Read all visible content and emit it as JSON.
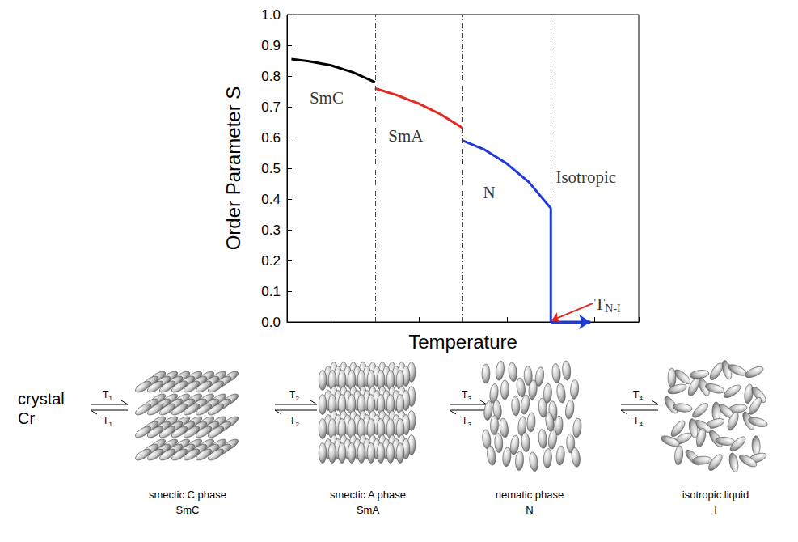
{
  "chart_data": {
    "type": "line",
    "x_label": "Temperature",
    "y_label": "Order Parameter S",
    "xlim": [
      0,
      8
    ],
    "xticks": [
      0,
      1,
      2,
      3,
      4,
      5,
      6,
      7,
      8
    ],
    "ylim": [
      0,
      1
    ],
    "yticks": [
      {
        "value": 0,
        "label": "0.0"
      },
      0.1,
      0.2,
      0.3,
      0.4,
      0.5,
      0.6,
      0.7,
      0.8,
      0.9,
      {
        "value": 1,
        "label": "1.0"
      }
    ],
    "tick_labels": "y",
    "grid": false,
    "series": [
      {
        "color": "#000000",
        "x": [
          0.1,
          0.5,
          1,
          1.5,
          2
        ],
        "values": [
          0.855,
          0.848,
          0.835,
          0.812,
          0.78
        ]
      },
      {
        "color": "#e8251f",
        "x": [
          2,
          2.5,
          3,
          3.5,
          4
        ],
        "values": [
          0.76,
          0.738,
          0.71,
          0.675,
          0.63
        ]
      },
      {
        "color": "#1f3ad6",
        "x": [
          4,
          4.5,
          5,
          5.5,
          6,
          6,
          6.9
        ],
        "values": [
          0.59,
          0.56,
          0.515,
          0.455,
          0.37,
          0,
          0
        ],
        "marker": "arrow"
      }
    ],
    "phase_boundaries": [
      2,
      4,
      6
    ],
    "annotations": [
      {
        "text": "SmC",
        "x": 0.9,
        "y": 0.73
      },
      {
        "text": "SmA",
        "x": 2.7,
        "y": 0.605
      },
      {
        "text": "N",
        "x": 4.6,
        "y": 0.42
      },
      {
        "text": "Isotropic",
        "x": 6.8,
        "y": 0.47
      },
      {
        "text": "T",
        "subscript": "N-I",
        "x": 6.95,
        "y": 0.06,
        "arrow_to": [
          6.02,
          0.005
        ],
        "color": "#e8251f"
      }
    ]
  },
  "diagram": {
    "start": {
      "name": "crystal",
      "symbol": "Cr"
    },
    "transitions": [
      {
        "text": "T",
        "subscript": "1"
      },
      {
        "text": "T",
        "subscript": "2"
      },
      {
        "text": "T",
        "subscript": "3"
      },
      {
        "text": "T",
        "subscript": "4"
      }
    ],
    "phases": [
      {
        "name": "smectic C phase",
        "symbol": "SmC"
      },
      {
        "name": "smectic A phase",
        "symbol": "SmA"
      },
      {
        "name": "nematic phase",
        "symbol": "N"
      },
      {
        "name": "isotropic liquid",
        "symbol": "I"
      }
    ]
  }
}
